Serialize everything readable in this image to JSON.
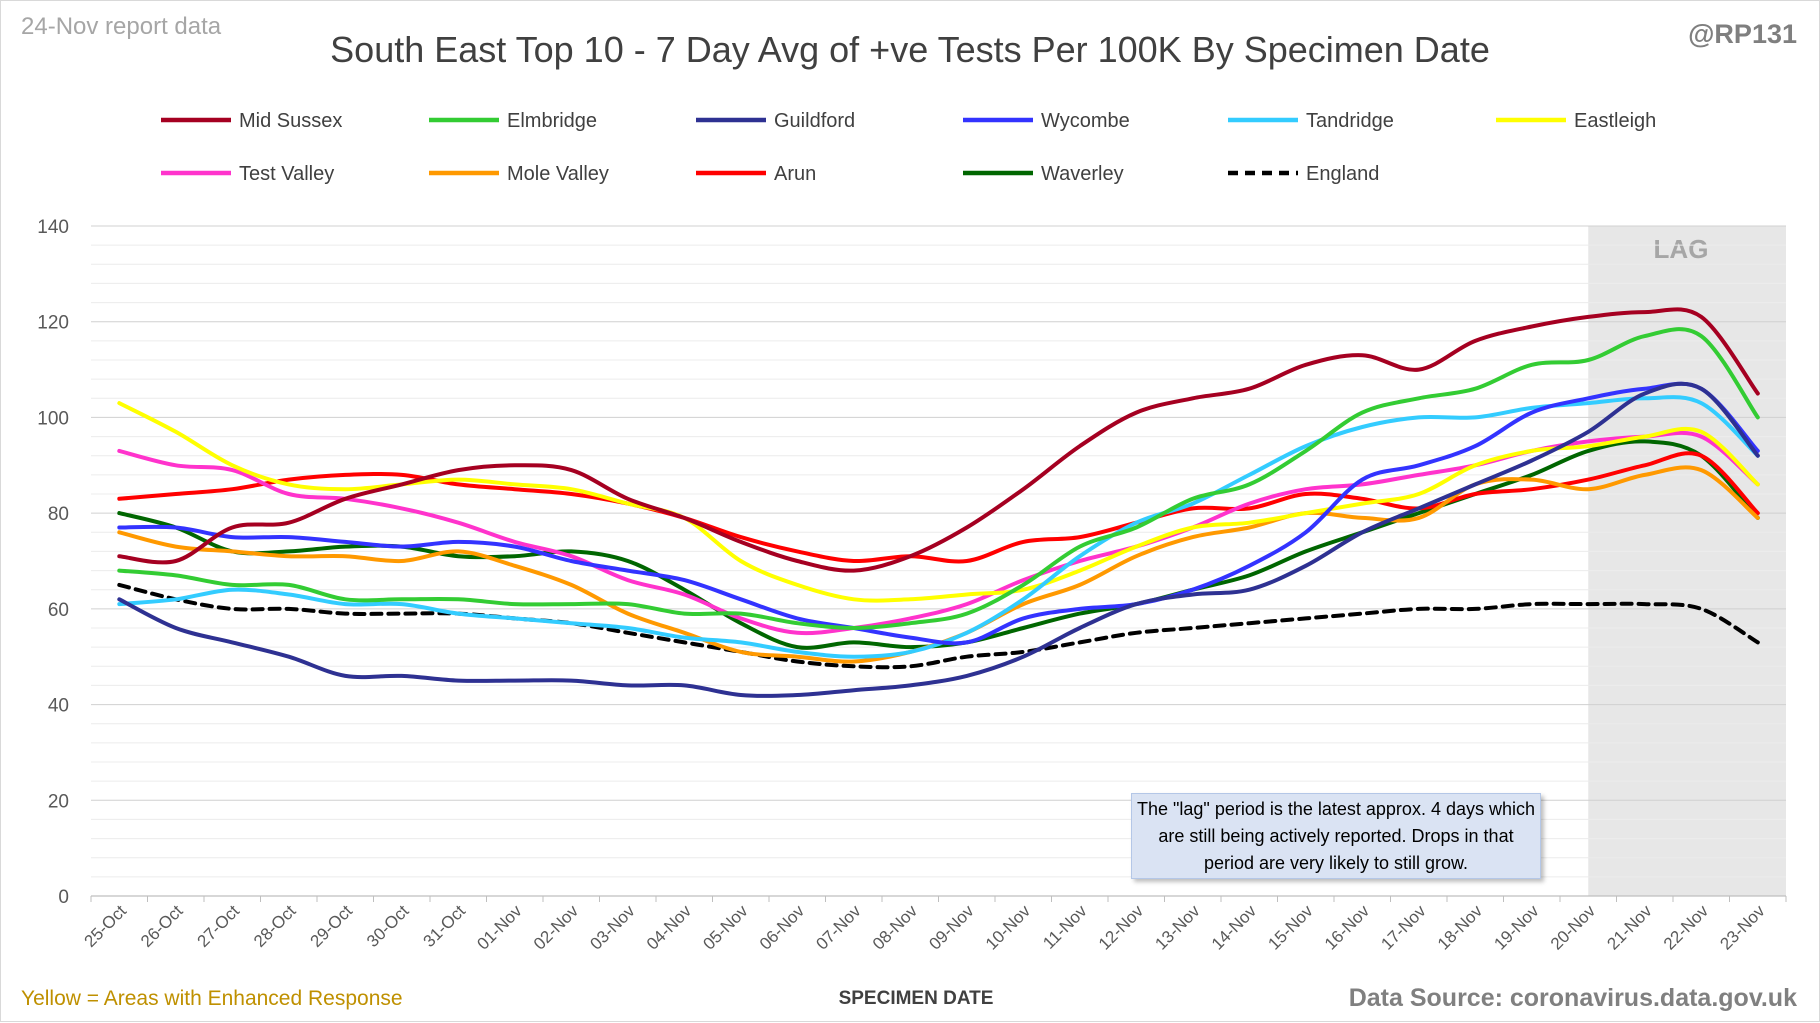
{
  "header": {
    "report_label": "24-Nov report data",
    "handle": "@RP131",
    "title": "South East Top 10 - 7 Day Avg of +ve Tests Per 100K By Specimen Date"
  },
  "footer": {
    "legend_note": "Yellow = Areas with Enhanced Response",
    "source": "Data Source: coronavirus.data.gov.uk"
  },
  "annotation": {
    "lag_label": "LAG",
    "note_text": "The \"lag\" period is the latest approx. 4 days which are still being actively reported.  Drops in that period are very likely to still grow."
  },
  "colors": {
    "lag_band": "#e7e7e7",
    "grid": "#d9d9d9",
    "axis_text": "#595959"
  },
  "chart_data": {
    "type": "line",
    "title": "South East Top 10 - 7 Day Avg of +ve Tests Per 100K By Specimen Date",
    "xlabel": "SPECIMEN DATE",
    "ylabel": "",
    "ylim": [
      0,
      140
    ],
    "yticks": [
      0,
      20,
      40,
      60,
      80,
      100,
      120,
      140
    ],
    "grid": true,
    "legend_position": "top",
    "lag_period": [
      "20-Nov",
      "23-Nov"
    ],
    "categories": [
      "25-Oct",
      "26-Oct",
      "27-Oct",
      "28-Oct",
      "29-Oct",
      "30-Oct",
      "31-Oct",
      "01-Nov",
      "02-Nov",
      "03-Nov",
      "04-Nov",
      "05-Nov",
      "06-Nov",
      "07-Nov",
      "08-Nov",
      "09-Nov",
      "10-Nov",
      "11-Nov",
      "12-Nov",
      "13-Nov",
      "14-Nov",
      "15-Nov",
      "16-Nov",
      "17-Nov",
      "18-Nov",
      "19-Nov",
      "20-Nov",
      "21-Nov",
      "22-Nov",
      "23-Nov"
    ],
    "series": [
      {
        "name": "Mid Sussex",
        "color": "#a50021",
        "dash": false,
        "values": [
          71,
          70,
          77,
          78,
          83,
          86,
          89,
          90,
          89,
          83,
          79,
          74,
          70,
          68,
          71,
          77,
          85,
          94,
          101,
          104,
          106,
          111,
          113,
          110,
          116,
          119,
          121,
          122,
          121,
          105
        ]
      },
      {
        "name": "Elmbridge",
        "color": "#33cc33",
        "dash": false,
        "values": [
          68,
          67,
          65,
          65,
          62,
          62,
          62,
          61,
          61,
          61,
          59,
          59,
          57,
          56,
          57,
          59,
          65,
          73,
          77,
          83,
          86,
          93,
          101,
          104,
          106,
          111,
          112,
          117,
          117,
          100
        ]
      },
      {
        "name": "Guildford",
        "color": "#2e3192",
        "dash": false,
        "values": [
          62,
          56,
          53,
          50,
          46,
          46,
          45,
          45,
          45,
          44,
          44,
          42,
          42,
          43,
          44,
          46,
          50,
          56,
          61,
          63,
          64,
          69,
          76,
          81,
          86,
          91,
          97,
          105,
          106,
          92
        ]
      },
      {
        "name": "Wycombe",
        "color": "#3333ff",
        "dash": false,
        "values": [
          77,
          77,
          75,
          75,
          74,
          73,
          74,
          73,
          70,
          68,
          66,
          62,
          58,
          56,
          54,
          53,
          58,
          60,
          61,
          64,
          69,
          76,
          87,
          90,
          94,
          101,
          104,
          106,
          106,
          93
        ]
      },
      {
        "name": "Tandridge",
        "color": "#33ccff",
        "dash": false,
        "values": [
          61,
          62,
          64,
          63,
          61,
          61,
          59,
          58,
          57,
          56,
          54,
          53,
          51,
          50,
          51,
          55,
          62,
          71,
          78,
          82,
          88,
          94,
          98,
          100,
          100,
          102,
          103,
          104,
          103,
          92
        ]
      },
      {
        "name": "Eastleigh",
        "color": "#ffff00",
        "dash": false,
        "values": [
          103,
          97,
          90,
          86,
          85,
          86,
          87,
          86,
          85,
          82,
          79,
          70,
          65,
          62,
          62,
          63,
          64,
          68,
          73,
          77,
          78,
          80,
          82,
          84,
          90,
          93,
          94,
          96,
          97,
          86
        ]
      },
      {
        "name": "Test Valley",
        "color": "#ff33cc",
        "dash": false,
        "values": [
          93,
          90,
          89,
          84,
          83,
          81,
          78,
          74,
          71,
          66,
          63,
          58,
          55,
          56,
          58,
          61,
          66,
          70,
          73,
          77,
          82,
          85,
          86,
          88,
          90,
          93,
          95,
          96,
          96,
          86
        ]
      },
      {
        "name": "Mole Valley",
        "color": "#ff9900",
        "dash": false,
        "values": [
          76,
          73,
          72,
          71,
          71,
          70,
          72,
          69,
          65,
          59,
          55,
          51,
          50,
          49,
          51,
          55,
          61,
          65,
          71,
          75,
          77,
          80,
          79,
          79,
          86,
          87,
          85,
          88,
          89,
          79
        ]
      },
      {
        "name": "Arun",
        "color": "#ff0000",
        "dash": false,
        "values": [
          83,
          84,
          85,
          87,
          88,
          88,
          86,
          85,
          84,
          82,
          79,
          75,
          72,
          70,
          71,
          70,
          74,
          75,
          78,
          81,
          81,
          84,
          83,
          81,
          84,
          85,
          87,
          90,
          92,
          80
        ]
      },
      {
        "name": "Waverley",
        "color": "#006600",
        "dash": false,
        "values": [
          80,
          77,
          72,
          72,
          73,
          73,
          71,
          71,
          72,
          70,
          64,
          57,
          52,
          53,
          52,
          53,
          56,
          59,
          61,
          64,
          67,
          72,
          76,
          80,
          84,
          88,
          93,
          95,
          92,
          79
        ]
      },
      {
        "name": "England",
        "color": "#000000",
        "dash": true,
        "values": [
          65,
          62,
          60,
          60,
          59,
          59,
          59,
          58,
          57,
          55,
          53,
          51,
          49,
          48,
          48,
          50,
          51,
          53,
          55,
          56,
          57,
          58,
          59,
          60,
          60,
          61,
          61,
          61,
          60,
          53
        ]
      }
    ]
  }
}
